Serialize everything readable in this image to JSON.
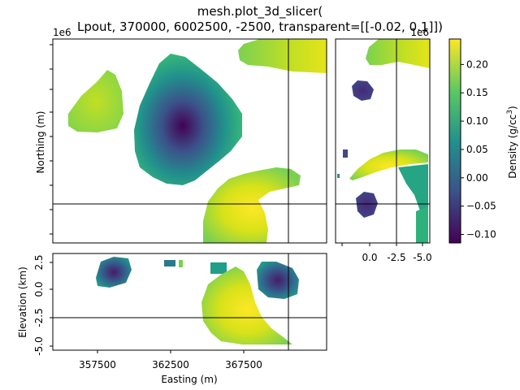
{
  "title_line1": "mesh.plot_3d_slicer(",
  "title_line2": "Lpout, 370000, 6002500, -2500, transparent=[[-0.02, 0.1]])",
  "chart_data": [
    {
      "panel": "plan view",
      "type": "heatmap",
      "ylabel": "Northing (m)",
      "offset_label_top": "1e6",
      "slice_lines": {
        "easting": 370000,
        "northing": 6002500
      },
      "xlim": [
        355000,
        373500
      ],
      "ylim": [
        6000000,
        6015000
      ]
    },
    {
      "panel": "east-west section",
      "type": "heatmap",
      "xlabel": "Easting (m)",
      "ylabel": "Elevation (km)",
      "xtick_labels": [
        "357500",
        "362500",
        "367500"
      ],
      "xticks": [
        357500,
        362500,
        367500
      ],
      "ytick_labels": [
        "2.5",
        "0.0",
        "-2.5",
        "-5.0"
      ],
      "yticks": [
        2.5,
        0.0,
        -2.5,
        -5.0
      ],
      "slice_lines": {
        "easting": 370000,
        "elevation": -2500
      }
    },
    {
      "panel": "north-south section",
      "type": "heatmap",
      "offset_label_top": "1e6",
      "xtick_labels": [
        "0.0",
        "-2.5",
        "-5.0"
      ],
      "xticks": [
        0.0,
        -2.5,
        -5.0
      ],
      "slice_lines": {
        "elevation": -2500,
        "northing": 6002500
      }
    },
    {
      "panel": "colorbar",
      "type": "colorbar",
      "label": "Density (g/cc$^3$)",
      "label_main": "Density (g/cc",
      "label_sup": "3",
      "label_end": ")",
      "range": [
        -0.115,
        0.245
      ],
      "ticks": [
        0.2,
        0.15,
        0.1,
        0.05,
        0.0,
        -0.05,
        -0.1
      ],
      "tick_labels": [
        "0.20",
        "0.15",
        "0.10",
        "0.05",
        "0.00",
        "−0.05",
        "−0.10"
      ]
    }
  ]
}
